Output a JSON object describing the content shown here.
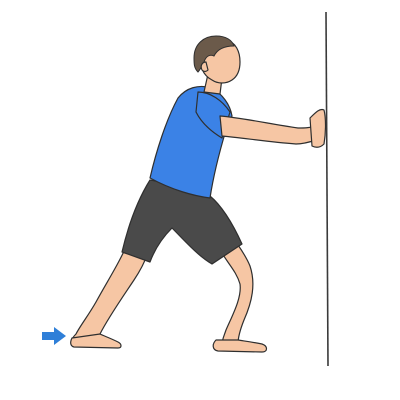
{
  "illustration": {
    "subject": "wall-calf-stretch",
    "icons": {
      "wall": "wall-line-icon",
      "person": "person-stretching-icon",
      "arrow": "arrow-right-icon"
    },
    "colors": {
      "background": "#ffffff",
      "wall_line": "#3a3a3a",
      "skin": "#f6c6a4",
      "skin_shade": "#e9ae89",
      "outline": "#2f2f2f",
      "shirt": "#3b82e6",
      "shirt_shade": "#2f6fcd",
      "shorts": "#4a4a4a",
      "shorts_shade": "#3a3a3a",
      "hair": "#6b5a4a",
      "arrow": "#2f7fd8"
    }
  }
}
